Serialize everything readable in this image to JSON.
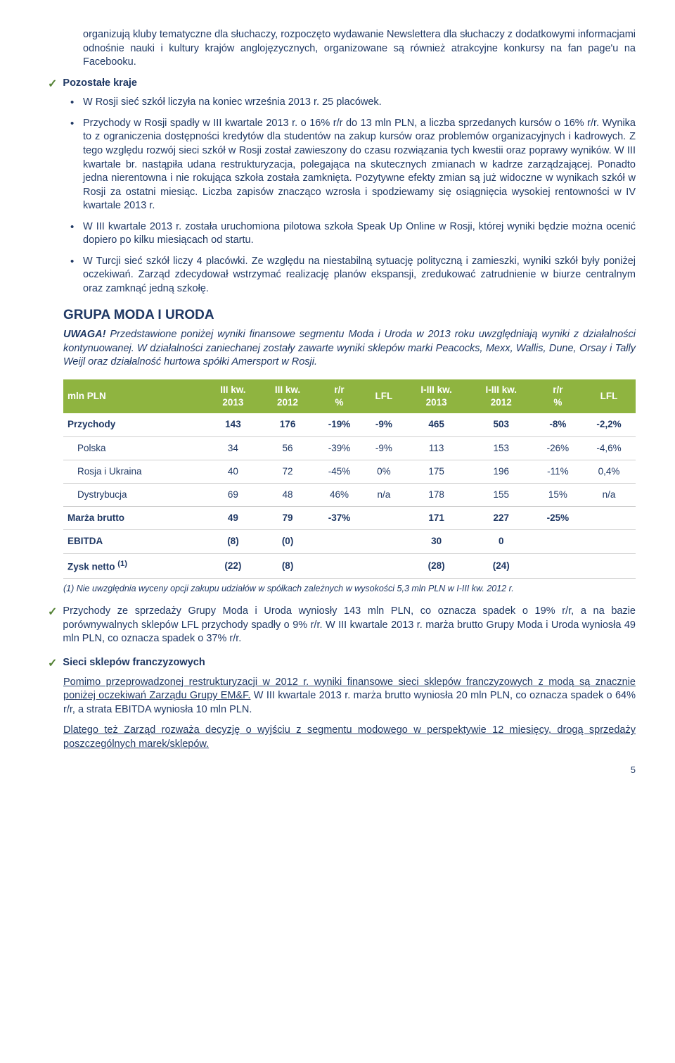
{
  "intro_para": "organizują kluby tematyczne dla słuchaczy, rozpoczęto wydawanie Newslettera dla słuchaczy z dodatkowymi informacjami odnośnie nauki i kultury krajów anglojęzycznych, organizowane są również atrakcyjne konkursy na fan page'u na Facebooku.",
  "section1_title": "Pozostałe kraje",
  "s1_b1": "W Rosji sieć szkół liczyła na koniec września 2013 r. 25 placówek.",
  "s1_b2": "Przychody w Rosji spadły w III kwartale 2013 r. o 16% r/r do 13 mln PLN, a liczba sprzedanych kursów o 16% r/r. Wynika to z ograniczenia dostępności kredytów dla studentów na zakup kursów oraz problemów organizacyjnych i kadrowych. Z tego względu rozwój sieci szkół w Rosji został zawieszony do czasu rozwiązania tych kwestii oraz poprawy wyników. W III kwartale br. nastąpiła udana restrukturyzacja, polegająca na skutecznych zmianach w kadrze zarządzającej. Ponadto jedna nierentowna i nie rokująca szkoła została zamknięta. Pozytywne efekty zmian są już widoczne w wynikach szkół w Rosji za ostatni miesiąc. Liczba zapisów znacząco wzrosła i spodziewamy się osiągnięcia wysokiej rentowności w IV kwartale 2013 r.",
  "s1_b3": "W III kwartale 2013 r. została uruchomiona pilotowa szkoła Speak Up Online w Rosji, której wyniki będzie można ocenić dopiero po kilku miesiącach od startu.",
  "s1_b4": "W Turcji sieć szkół liczy 4 placówki. Ze względu na niestabilną sytuację polityczną i zamieszki, wyniki szkół były poniżej oczekiwań. Zarząd zdecydował wstrzymać realizację planów ekspansji, zredukować zatrudnienie w biurze centralnym oraz zamknąć jedną szkołę.",
  "group_title": "GRUPA MODA I URODA",
  "uwaga_bold": "UWAGA!",
  "uwaga_rest": " Przedstawione poniżej wyniki finansowe segmentu Moda i Uroda w 2013 roku uwzględniają wyniki z działalności kontynuowanej. W działalności zaniechanej zostały zawarte wyniki sklepów marki Peacocks, Mexx, Wallis, Dune, Orsay i Tally Weijl oraz działalność hurtowa spółki Amersport w Rosji.",
  "table": {
    "headers": [
      "mln PLN",
      "III kw. 2013",
      "III kw. 2012",
      "r/r %",
      "LFL",
      "I-III kw. 2013",
      "I-III kw. 2012",
      "r/r %",
      "LFL"
    ],
    "rows": [
      {
        "cls": "head-row",
        "c": [
          "Przychody",
          "143",
          "176",
          "-19%",
          "-9%",
          "465",
          "503",
          "-8%",
          "-2,2%"
        ]
      },
      {
        "cls": "sub",
        "c": [
          "Polska",
          "34",
          "56",
          "-39%",
          "-9%",
          "113",
          "153",
          "-26%",
          "-4,6%"
        ]
      },
      {
        "cls": "sub",
        "c": [
          "Rosja i Ukraina",
          "40",
          "72",
          "-45%",
          "0%",
          "175",
          "196",
          "-11%",
          "0,4%"
        ]
      },
      {
        "cls": "sub",
        "c": [
          "Dystrybucja",
          "69",
          "48",
          "46%",
          "n/a",
          "178",
          "155",
          "15%",
          "n/a"
        ]
      },
      {
        "cls": "head-row",
        "c": [
          "Marża brutto",
          "49",
          "79",
          "-37%",
          "",
          "171",
          "227",
          "-25%",
          ""
        ]
      },
      {
        "cls": "head-row",
        "c": [
          "EBITDA",
          "(8)",
          "(0)",
          "",
          "",
          "30",
          "0",
          "",
          ""
        ]
      },
      {
        "cls": "head-row",
        "c": [
          "Zysk netto (1)",
          "(22)",
          "(8)",
          "",
          "",
          "(28)",
          "(24)",
          "",
          ""
        ]
      }
    ],
    "header_bg": "#8fb440",
    "header_color": "#ffffff",
    "border_color": "#cfcfcf"
  },
  "footnote": "(1)   Nie uwzględnia wyceny opcji zakupu udziałów w spółkach zależnych w wysokości 5,3 mln PLN w I-III kw. 2012 r.",
  "p3": "Przychody ze sprzedaży Grupy Moda i Uroda wyniosły 143 mln PLN, co oznacza spadek o 19% r/r, a na bazie porównywalnych sklepów LFL przychody spadły o 9% r/r. W III kwartale 2013 r. marża brutto Grupy Moda i Uroda wyniosła 49 mln PLN, co oznacza spadek o 37% r/r.",
  "section2_title": "Sieci sklepów franczyzowych",
  "p4_u1": "Pomimo przeprowadzonej restrukturyzacji w 2012 r. wyniki finansowe sieci sklepów franczyzowych z modą są znacznie poniżej oczekiwań Zarządu Grupy EM&F.",
  "p4_rest": " W III kwartale 2013 r. marża brutto wyniosła 20 mln PLN, co oznacza spadek o 64% r/r, a strata EBITDA wyniosła 10 mln PLN.",
  "p5_u": "Dlatego też Zarząd rozważa decyzję o wyjściu z segmentu modowego w perspektywie 12 miesięcy, drogą sprzedaży poszczególnych marek/sklepów.",
  "pagenum": "5"
}
